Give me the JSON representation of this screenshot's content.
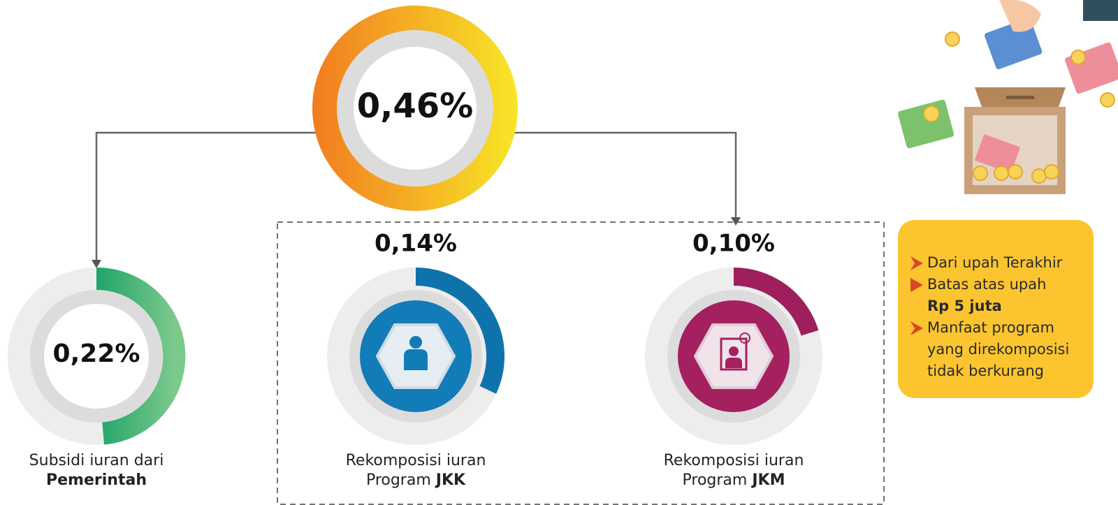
{
  "main": {
    "value": "0,46%"
  },
  "nodes": [
    {
      "value": "0,22%",
      "label_line1": "Subsidi iuran dari",
      "label_bold": "Pemerintah"
    },
    {
      "value": "0,14%",
      "label_line1": "Rekomposisi iuran",
      "label_line2": "Program",
      "label_bold": "JKK"
    },
    {
      "value": "0,10%",
      "label_line1": "Rekomposisi iuran",
      "label_line2": "Program",
      "label_bold": "JKM"
    }
  ],
  "notes": [
    {
      "lines": [
        "Dari upah Terakhir"
      ]
    },
    {
      "lines": [
        "Batas atas upah"
      ],
      "bold": "Rp 5 juta"
    },
    {
      "lines": [
        "Manfaat program",
        "yang direkomposisi",
        "tidak berkurang"
      ]
    }
  ]
}
